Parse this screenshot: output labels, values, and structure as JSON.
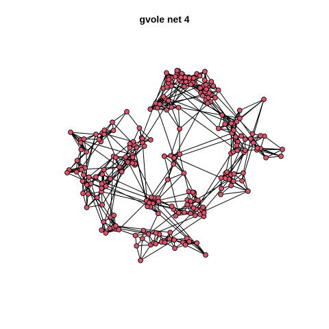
{
  "title": "gvole net 4",
  "colors": {
    "node_fill": "#DF536B",
    "node_stroke": "#000000",
    "edge": "#000000",
    "background": "#FFFFFF"
  },
  "graph": {
    "type": "network",
    "layout": "force-directed"
  }
}
